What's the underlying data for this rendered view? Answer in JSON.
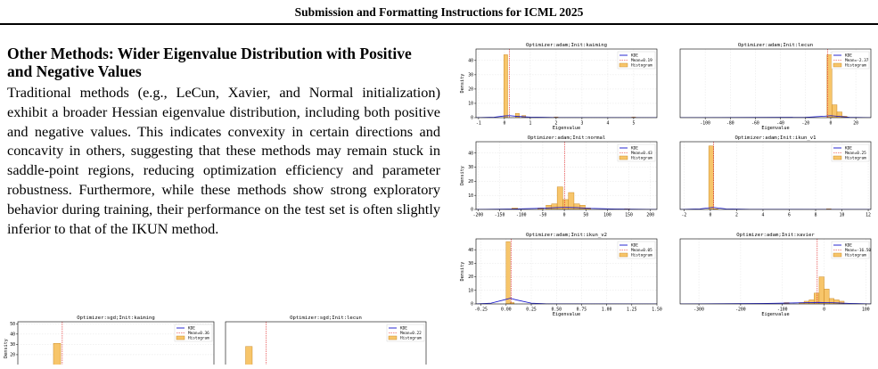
{
  "header": {
    "title": "Submission and Formatting Instructions for ICML 2025"
  },
  "section": {
    "title": "Other Methods: Wider Eigenvalue Distribution with Positive and Negative Values",
    "body": "Traditional methods (e.g., LeCun, Xavier, and Normal initialization) exhibit a broader Hessian eigenvalue distribution, including both positive and negative values. This indicates convexity in certain directions and concavity in others, suggesting that these methods may remain stuck in saddle-point regions, reducing optimization efficiency and parameter robustness. Furthermore, while these methods show strong exploratory behavior during training, their performance on the test set is often slightly inferior to that of the IKUN method."
  },
  "colors": {
    "histogram_fill": "#f7c56a",
    "histogram_edge": "#c07a10",
    "kde": "#1010cc",
    "mean_line": "#e02020"
  },
  "legend_labels": {
    "kde": "KDE",
    "histogram": "Histogram"
  },
  "chart_data": [
    {
      "type": "bar",
      "title": "Optimizer:adam;Init:kaiming",
      "xlabel": "Eigenvalue",
      "ylabel": "Density",
      "xlim": [
        -1.1,
        5.9
      ],
      "ylim": [
        0,
        48
      ],
      "xticks": [
        -1,
        0,
        1,
        2,
        3,
        4,
        5
      ],
      "yticks": [
        0,
        10,
        20,
        30,
        40
      ],
      "mean": 0.19,
      "mean_label": "Mean=0.19",
      "bin_width": 0.15,
      "bins": [
        [
          0.05,
          44
        ],
        [
          0.5,
          3
        ],
        [
          0.75,
          1.5
        ],
        [
          2.0,
          0.5
        ],
        [
          5.0,
          0.4
        ]
      ],
      "kde": [
        [
          -1.1,
          0
        ],
        [
          -0.4,
          0.3
        ],
        [
          0.0,
          1.2
        ],
        [
          0.2,
          1.4
        ],
        [
          0.5,
          0.9
        ],
        [
          1.0,
          0.4
        ],
        [
          2.0,
          0.1
        ],
        [
          5.9,
          0
        ]
      ]
    },
    {
      "type": "bar",
      "title": "Optimizer:adam;Init:lecun",
      "xlabel": "Eigenvalue",
      "ylabel": "",
      "xlim": [
        -120,
        32
      ],
      "ylim": [
        0,
        48
      ],
      "xticks": [
        -100,
        -80,
        -60,
        -40,
        -20,
        0,
        20
      ],
      "yticks": [],
      "mean": -2.37,
      "mean_label": "Mean=-2.37",
      "bin_width": 4,
      "bins": [
        [
          -1,
          44
        ],
        [
          3,
          9
        ],
        [
          7,
          4
        ],
        [
          11,
          1
        ]
      ],
      "kde": [
        [
          -120,
          0
        ],
        [
          -20,
          0.2
        ],
        [
          -5,
          1.0
        ],
        [
          0,
          1.4
        ],
        [
          5,
          1.0
        ],
        [
          15,
          0.2
        ],
        [
          32,
          0
        ]
      ]
    },
    {
      "type": "bar",
      "title": "Optimizer:adam;Init:normal",
      "xlabel": "",
      "ylabel": "Density",
      "xlim": [
        -205,
        215
      ],
      "ylim": [
        0,
        48
      ],
      "xticks": [
        -200,
        -150,
        -100,
        -50,
        0,
        50,
        100,
        150,
        200
      ],
      "yticks": [
        0,
        10,
        20,
        30,
        40
      ],
      "mean": 0.43,
      "mean_label": "Mean=0.43",
      "bin_width": 13,
      "bins": [
        [
          -115,
          1
        ],
        [
          -55,
          1
        ],
        [
          -36,
          3
        ],
        [
          -23,
          4
        ],
        [
          -10,
          16
        ],
        [
          3,
          7
        ],
        [
          16,
          12
        ],
        [
          29,
          4
        ],
        [
          42,
          3
        ],
        [
          55,
          1
        ],
        [
          146,
          0.5
        ]
      ],
      "kde": [
        [
          -205,
          0
        ],
        [
          -120,
          0.3
        ],
        [
          -60,
          0.8
        ],
        [
          -20,
          1.3
        ],
        [
          0,
          1.5
        ],
        [
          30,
          1.3
        ],
        [
          60,
          0.8
        ],
        [
          120,
          0.3
        ],
        [
          215,
          0
        ]
      ]
    },
    {
      "type": "bar",
      "title": "Optimizer:adam;Init:ikun_v1",
      "xlabel": "",
      "ylabel": "",
      "xlim": [
        -2.3,
        12.2
      ],
      "ylim": [
        0,
        48
      ],
      "xticks": [
        -2,
        0,
        2,
        4,
        6,
        8,
        10,
        12
      ],
      "yticks": [],
      "mean": 0.25,
      "mean_label": "Mean=0.25",
      "bin_width": 0.35,
      "bins": [
        [
          0.05,
          45
        ],
        [
          0.4,
          0.5
        ],
        [
          9.0,
          0.5
        ]
      ],
      "kde": [
        [
          -2.3,
          0
        ],
        [
          -0.8,
          0.4
        ],
        [
          0.2,
          1.5
        ],
        [
          1.2,
          0.4
        ],
        [
          3.0,
          0.1
        ],
        [
          12.2,
          0
        ]
      ]
    },
    {
      "type": "bar",
      "title": "Optimizer:adam;Init:ikun_v2",
      "xlabel": "Eigenvalue",
      "ylabel": "Density",
      "xlim": [
        -0.3,
        1.5
      ],
      "ylim": [
        0,
        48
      ],
      "xticks": [
        -0.25,
        0.0,
        0.25,
        0.5,
        0.75,
        1.0,
        1.25,
        1.5
      ],
      "xticklabels": [
        "-0.25",
        "0.00",
        "0.25",
        "0.50",
        "0.75",
        "1.00",
        "1.25",
        "1.50"
      ],
      "yticks": [
        0,
        10,
        20,
        30,
        40
      ],
      "mean": 0.05,
      "mean_label": "Mean=0.05",
      "bin_width": 0.04,
      "bins": [
        [
          0.02,
          46
        ],
        [
          0.06,
          1
        ]
      ],
      "kde": [
        [
          -0.3,
          0
        ],
        [
          -0.15,
          0.6
        ],
        [
          -0.02,
          3.0
        ],
        [
          0.04,
          4.2
        ],
        [
          0.1,
          3.0
        ],
        [
          0.25,
          0.6
        ],
        [
          0.4,
          0.1
        ],
        [
          1.5,
          0
        ]
      ]
    },
    {
      "type": "bar",
      "title": "Optimizer:adam;Init:xavier",
      "xlabel": "Eigenvalue",
      "ylabel": "",
      "xlim": [
        -345,
        112
      ],
      "ylim": [
        0,
        48
      ],
      "xticks": [
        -300,
        -200,
        -100,
        0,
        100
      ],
      "yticks": [],
      "mean": -16.5,
      "mean_label": "Mean=-16.50",
      "bin_width": 12,
      "bins": [
        [
          -90,
          1
        ],
        [
          -54,
          1
        ],
        [
          -42,
          2
        ],
        [
          -30,
          3
        ],
        [
          -18,
          8
        ],
        [
          -6,
          20
        ],
        [
          6,
          11
        ],
        [
          18,
          4
        ],
        [
          30,
          3
        ],
        [
          42,
          2
        ]
      ],
      "kde": [
        [
          -345,
          0
        ],
        [
          -150,
          0.3
        ],
        [
          -60,
          0.8
        ],
        [
          -15,
          1.1
        ],
        [
          20,
          0.9
        ],
        [
          60,
          0.4
        ],
        [
          112,
          0
        ]
      ]
    },
    {
      "type": "bar",
      "title": "Optimizer:sgd;Init:kaiming",
      "xlabel": "",
      "ylabel": "Density",
      "xlim": [
        -1,
        5
      ],
      "ylim": [
        0,
        52
      ],
      "xticks": [],
      "yticks": [
        20,
        30,
        40,
        50
      ],
      "mean": 0.36,
      "mean_label": "Mean=0.36",
      "bin_width": 0.22,
      "bins": [
        [
          0.2,
          31
        ]
      ],
      "kde": []
    },
    {
      "type": "bar",
      "title": "Optimizer:sgd;Init:lecun",
      "xlabel": "",
      "ylabel": "",
      "xlim": [
        -1,
        5
      ],
      "ylim": [
        0,
        52
      ],
      "xticks": [],
      "yticks": [],
      "mean": 0.22,
      "mean_label": "Mean=0.22",
      "bin_width": 0.2,
      "bins": [
        [
          -0.3,
          28
        ]
      ],
      "kde": []
    }
  ]
}
